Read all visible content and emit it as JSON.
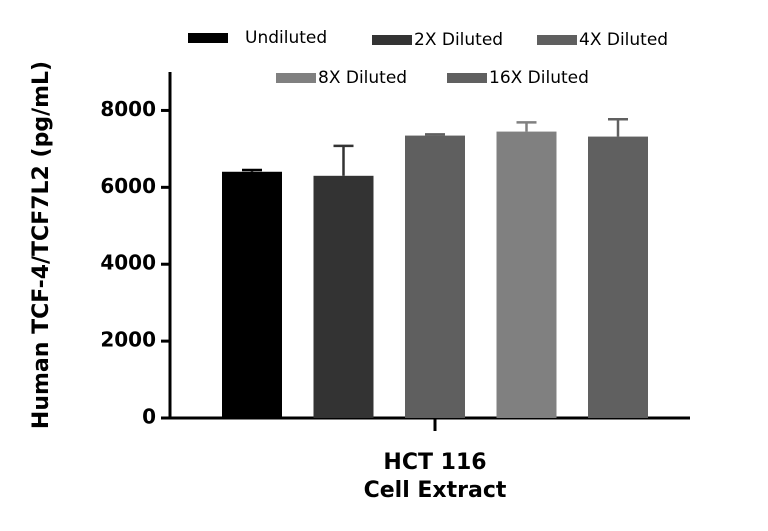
{
  "chart_data": {
    "type": "bar",
    "y_label": "Human TCF-4/TCF7L2 (pg/mL)",
    "categories": [
      [
        "HCT 116",
        "Cell Extract"
      ]
    ],
    "series": [
      {
        "name": "Undiluted",
        "color": "#000000",
        "values": [
          6405
        ],
        "errors": [
          45
        ]
      },
      {
        "name": "2X Diluted",
        "color": "#333333",
        "values": [
          6300
        ],
        "errors": [
          780
        ]
      },
      {
        "name": "4X Diluted",
        "color": "#5f5f5f",
        "values": [
          7346
        ],
        "errors": [
          30
        ]
      },
      {
        "name": "8X Diluted",
        "color": "#808080",
        "values": [
          7450
        ],
        "errors": [
          240
        ]
      },
      {
        "name": "16X Diluted",
        "color": "#606060",
        "values": [
          7320
        ],
        "errors": [
          450
        ]
      }
    ],
    "ylim": [
      0,
      9000
    ],
    "yticks": [
      0,
      2000,
      4000,
      6000,
      8000
    ]
  }
}
